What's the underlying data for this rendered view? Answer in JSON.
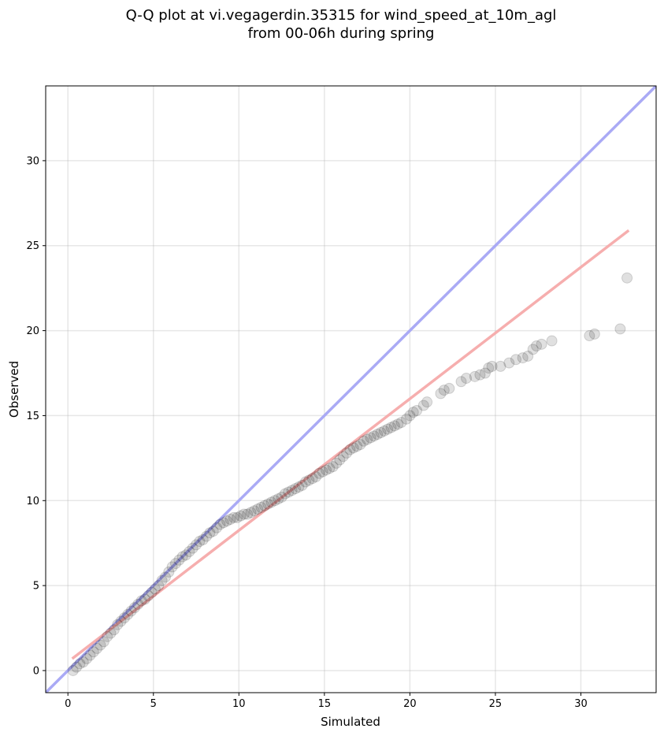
{
  "chart_data": {
    "type": "scatter",
    "title_lines": [
      "Q-Q plot at vi.vegagerdin.35315 for wind_speed_at_10m_agl",
      "from 00-06h during spring"
    ],
    "xlabel": "Simulated",
    "ylabel": "Observed",
    "xlim": [
      -1.3,
      34.4
    ],
    "ylim": [
      -1.3,
      34.4
    ],
    "xticks": [
      0,
      5,
      10,
      15,
      20,
      25,
      30
    ],
    "yticks": [
      0,
      5,
      10,
      15,
      20,
      25,
      30
    ],
    "grid": true,
    "reference_line": {
      "label": "",
      "color": "#aaaaf5",
      "x": [
        -1.3,
        34.4
      ],
      "y": [
        -1.3,
        34.4
      ]
    },
    "fit_line": {
      "label": "",
      "color": "#f5aaaa",
      "x": [
        0.25,
        32.8
      ],
      "y": [
        0.7,
        25.9
      ]
    },
    "series": [
      {
        "color": "#000000",
        "points": [
          [
            0.3,
            0.0
          ],
          [
            0.5,
            0.2
          ],
          [
            0.7,
            0.4
          ],
          [
            0.9,
            0.5
          ],
          [
            1.1,
            0.7
          ],
          [
            1.3,
            0.9
          ],
          [
            1.5,
            1.1
          ],
          [
            1.7,
            1.3
          ],
          [
            1.9,
            1.5
          ],
          [
            2.1,
            1.7
          ],
          [
            2.3,
            2.0
          ],
          [
            2.5,
            2.2
          ],
          [
            2.7,
            2.4
          ],
          [
            2.9,
            2.7
          ],
          [
            3.1,
            2.9
          ],
          [
            3.3,
            3.1
          ],
          [
            3.5,
            3.3
          ],
          [
            3.7,
            3.5
          ],
          [
            3.9,
            3.7
          ],
          [
            4.1,
            3.9
          ],
          [
            4.3,
            4.1
          ],
          [
            4.5,
            4.2
          ],
          [
            4.7,
            4.4
          ],
          [
            4.9,
            4.6
          ],
          [
            5.1,
            4.8
          ],
          [
            5.3,
            5.0
          ],
          [
            5.5,
            5.3
          ],
          [
            5.7,
            5.5
          ],
          [
            5.9,
            5.8
          ],
          [
            6.1,
            6.1
          ],
          [
            6.3,
            6.3
          ],
          [
            6.5,
            6.5
          ],
          [
            6.7,
            6.7
          ],
          [
            6.9,
            6.8
          ],
          [
            7.1,
            7.0
          ],
          [
            7.3,
            7.2
          ],
          [
            7.5,
            7.4
          ],
          [
            7.7,
            7.6
          ],
          [
            7.9,
            7.7
          ],
          [
            8.1,
            7.9
          ],
          [
            8.3,
            8.1
          ],
          [
            8.5,
            8.2
          ],
          [
            8.7,
            8.4
          ],
          [
            8.9,
            8.6
          ],
          [
            9.1,
            8.7
          ],
          [
            9.3,
            8.8
          ],
          [
            9.5,
            8.9
          ],
          [
            9.7,
            9.0
          ],
          [
            9.9,
            9.0
          ],
          [
            10.1,
            9.1
          ],
          [
            10.3,
            9.2
          ],
          [
            10.5,
            9.2
          ],
          [
            10.7,
            9.3
          ],
          [
            10.9,
            9.4
          ],
          [
            11.1,
            9.5
          ],
          [
            11.3,
            9.6
          ],
          [
            11.5,
            9.7
          ],
          [
            11.7,
            9.8
          ],
          [
            11.9,
            9.9
          ],
          [
            12.1,
            10.0
          ],
          [
            12.3,
            10.1
          ],
          [
            12.5,
            10.2
          ],
          [
            12.7,
            10.4
          ],
          [
            12.9,
            10.5
          ],
          [
            13.1,
            10.6
          ],
          [
            13.3,
            10.7
          ],
          [
            13.5,
            10.8
          ],
          [
            13.7,
            10.9
          ],
          [
            13.9,
            11.1
          ],
          [
            14.1,
            11.2
          ],
          [
            14.3,
            11.3
          ],
          [
            14.5,
            11.4
          ],
          [
            14.7,
            11.6
          ],
          [
            14.9,
            11.7
          ],
          [
            15.1,
            11.8
          ],
          [
            15.3,
            11.9
          ],
          [
            15.5,
            12.0
          ],
          [
            15.7,
            12.2
          ],
          [
            15.9,
            12.4
          ],
          [
            16.1,
            12.6
          ],
          [
            16.3,
            12.8
          ],
          [
            16.5,
            13.0
          ],
          [
            16.7,
            13.1
          ],
          [
            16.9,
            13.2
          ],
          [
            17.1,
            13.3
          ],
          [
            17.3,
            13.5
          ],
          [
            17.5,
            13.6
          ],
          [
            17.7,
            13.7
          ],
          [
            17.9,
            13.8
          ],
          [
            18.1,
            13.9
          ],
          [
            18.3,
            14.0
          ],
          [
            18.5,
            14.1
          ],
          [
            18.7,
            14.2
          ],
          [
            18.9,
            14.3
          ],
          [
            19.1,
            14.4
          ],
          [
            19.3,
            14.5
          ],
          [
            19.5,
            14.6
          ],
          [
            19.8,
            14.8
          ],
          [
            20.0,
            15.0
          ],
          [
            20.2,
            15.2
          ],
          [
            20.4,
            15.3
          ],
          [
            20.8,
            15.6
          ],
          [
            21.0,
            15.8
          ],
          [
            21.8,
            16.3
          ],
          [
            22.0,
            16.5
          ],
          [
            22.3,
            16.6
          ],
          [
            23.0,
            17.0
          ],
          [
            23.3,
            17.2
          ],
          [
            23.8,
            17.3
          ],
          [
            24.1,
            17.4
          ],
          [
            24.4,
            17.5
          ],
          [
            24.6,
            17.8
          ],
          [
            24.8,
            17.9
          ],
          [
            25.3,
            17.9
          ],
          [
            25.8,
            18.1
          ],
          [
            26.2,
            18.3
          ],
          [
            26.6,
            18.4
          ],
          [
            26.9,
            18.5
          ],
          [
            27.2,
            18.9
          ],
          [
            27.4,
            19.1
          ],
          [
            27.7,
            19.2
          ],
          [
            28.3,
            19.4
          ],
          [
            30.5,
            19.7
          ],
          [
            30.8,
            19.8
          ],
          [
            32.3,
            20.1
          ],
          [
            32.7,
            23.1
          ]
        ]
      }
    ]
  }
}
